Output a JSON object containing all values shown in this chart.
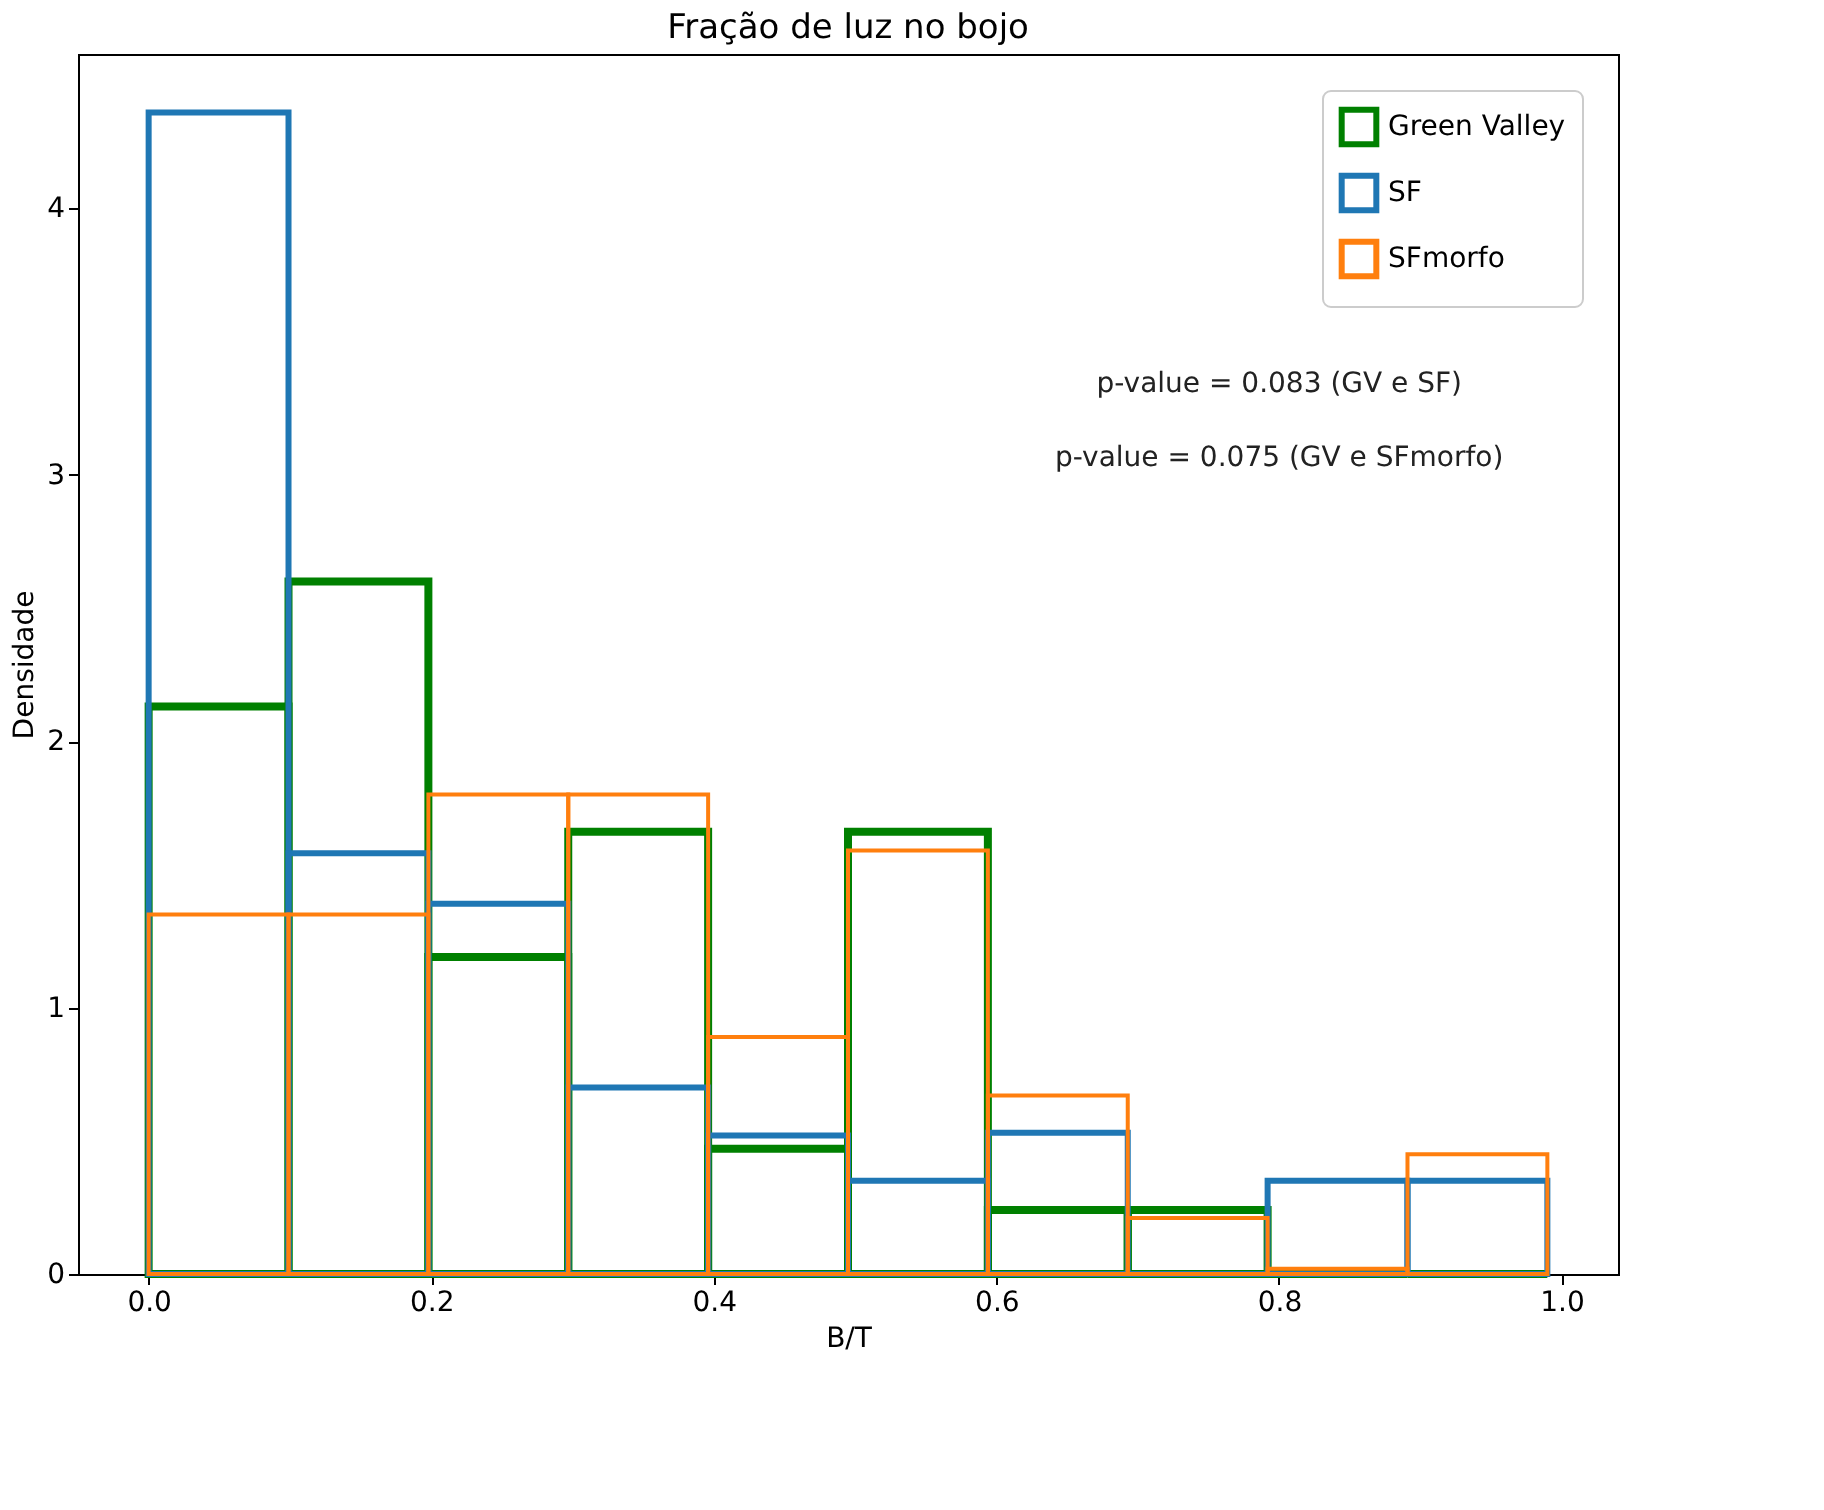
{
  "chart_data": {
    "type": "histogram",
    "title": "Fração de luz no bojo",
    "xlabel": "B/T",
    "ylabel": "Densidade",
    "bins": [
      0.0,
      0.099,
      0.198,
      0.297,
      0.396,
      0.495,
      0.594,
      0.693,
      0.792,
      0.891,
      0.99
    ],
    "series": [
      {
        "name": "Green Valley",
        "color": "#008000",
        "values": [
          2.13,
          2.6,
          1.19,
          1.66,
          0.47,
          1.66,
          0.24,
          0.24,
          0.0,
          0.0
        ]
      },
      {
        "name": "SF",
        "color": "#1f77b4",
        "values": [
          4.36,
          1.58,
          1.39,
          0.7,
          0.52,
          0.35,
          0.53,
          0.0,
          0.35,
          0.35
        ]
      },
      {
        "name": "SFmorfo",
        "color": "#ff7f0e",
        "values": [
          1.35,
          1.35,
          1.8,
          1.8,
          0.89,
          1.59,
          0.67,
          0.21,
          0.02,
          0.45
        ]
      }
    ],
    "xlim": [
      -0.05,
      1.04
    ],
    "ylim": [
      0,
      4.58
    ],
    "xticks": [
      {
        "value": 0,
        "label": "0.0"
      },
      {
        "value": 0.2,
        "label": "0.2"
      },
      {
        "value": 0.4,
        "label": "0.4"
      },
      {
        "value": 0.6,
        "label": "0.6"
      },
      {
        "value": 0.8,
        "label": "0.8"
      },
      {
        "value": 1,
        "label": "1.0"
      }
    ],
    "yticks": [
      0,
      1,
      2,
      3,
      4
    ],
    "annotations": [
      "p-value = 0.083 (GV e SF)",
      "p-value = 0.075 (GV e SFmorfo)"
    ],
    "legend": "top right",
    "grid": false
  }
}
